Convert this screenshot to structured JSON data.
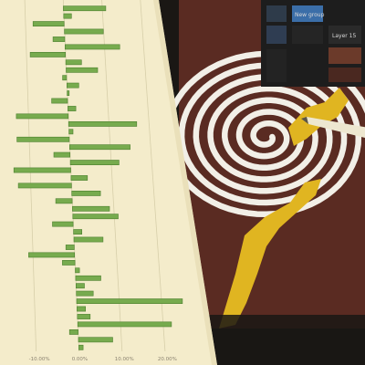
{
  "photo": {
    "subject": "photo of a printed diverging bar chart beside a tablet showing a spiral painting with a stylus",
    "colors": {
      "paper": "#f4eccb",
      "bar_fill": "#77ab4e",
      "bar_stroke": "#4c7f2f",
      "gridline": "#d7cfaa",
      "spiral_dark": "#5a2b22",
      "spiral_light": "#f2efe7",
      "paint_yellow": "#e0b521",
      "tablet_ui": "#1d1d1d"
    }
  },
  "printed_chart": {
    "x_tick_labels": [
      "-10.00%",
      "0.00%",
      "10.00%",
      "20.00%"
    ],
    "chart_data": {
      "type": "bar",
      "orientation": "horizontal",
      "x_range": [
        -15,
        30
      ],
      "grid": true,
      "values": [
        11,
        2,
        -8,
        10,
        -3,
        14,
        -9,
        4,
        8,
        -1,
        3,
        0.5,
        -4,
        2,
        -13,
        17,
        1,
        -13,
        15,
        -4,
        12,
        -14,
        4,
        -13,
        7,
        -4,
        9,
        11,
        -5,
        2,
        7,
        -2,
        -11,
        -3,
        1,
        6,
        2,
        4,
        25,
        2,
        3,
        22,
        -2,
        8,
        1
      ]
    }
  },
  "tablet": {
    "layer_panel": {
      "group_label": "New group",
      "layer_label": "Layer 15"
    }
  }
}
